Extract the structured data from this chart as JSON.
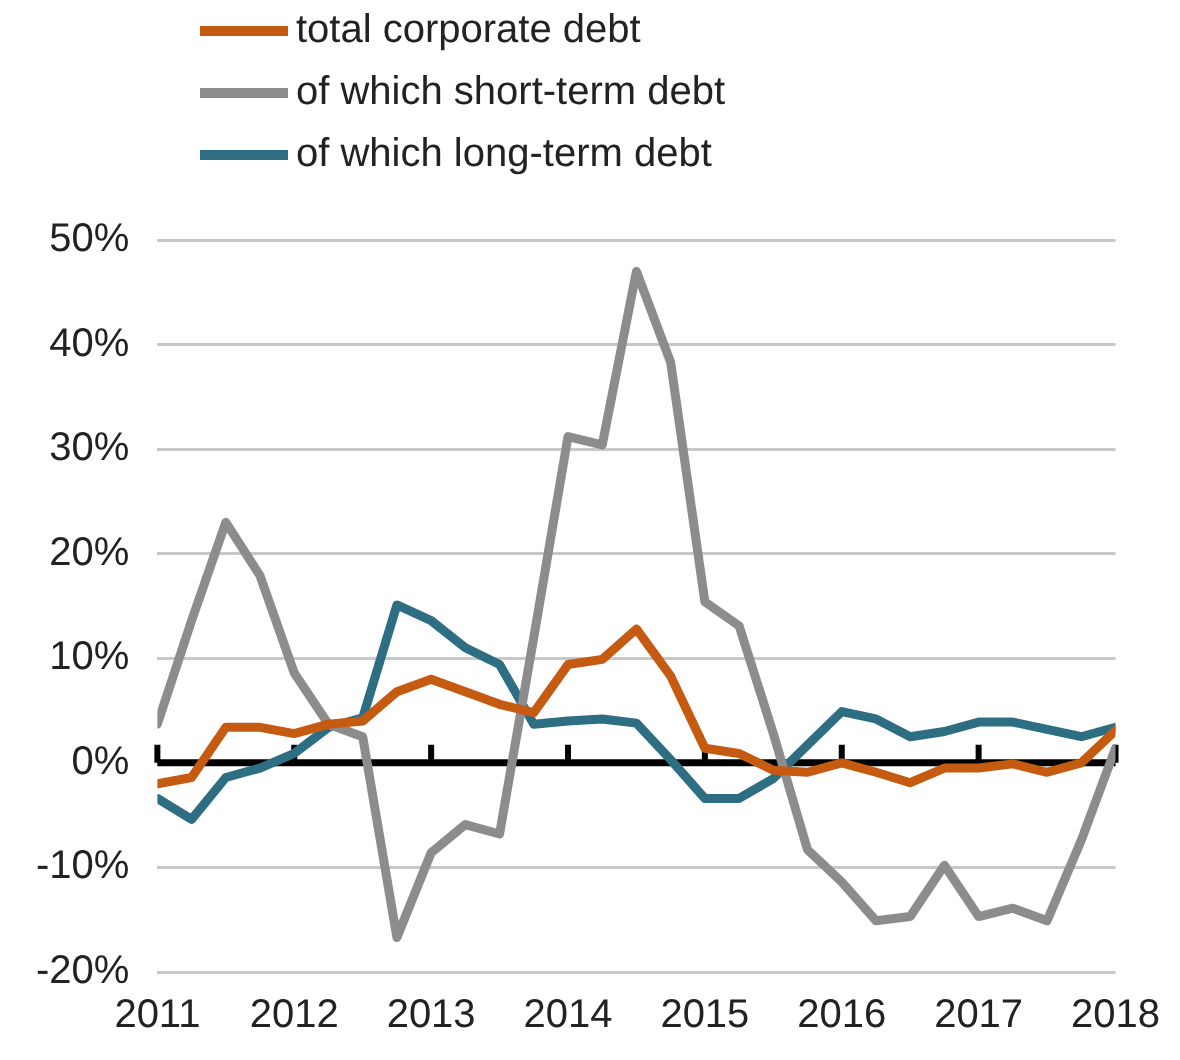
{
  "chart_data": {
    "type": "line",
    "legend": "top left",
    "grid": "y",
    "marker": "none",
    "line_style": "solid",
    "x": [
      2011,
      2011.25,
      2011.5,
      2011.75,
      2012,
      2012.25,
      2012.5,
      2012.75,
      2013,
      2013.25,
      2013.5,
      2013.75,
      2014,
      2014.25,
      2014.5,
      2014.75,
      2015,
      2015.25,
      2015.5,
      2015.75,
      2016,
      2016.25,
      2016.5,
      2016.75,
      2017,
      2017.25,
      2017.5,
      2017.75,
      2018
    ],
    "xlim": [
      2011,
      2018
    ],
    "xticks": [
      2011,
      2012,
      2013,
      2014,
      2015,
      2016,
      2017,
      2018
    ],
    "ylim": [
      -20,
      50
    ],
    "yticks": [
      {
        "value": -20,
        "label": "-20%"
      },
      {
        "value": -10,
        "label": "-10%"
      },
      {
        "value": 0,
        "label": "0%"
      },
      {
        "value": 10,
        "label": "10%"
      },
      {
        "value": 20,
        "label": "20%"
      },
      {
        "value": 30,
        "label": "30%"
      },
      {
        "value": 40,
        "label": "40%"
      },
      {
        "value": 50,
        "label": "50%"
      }
    ],
    "ref_lines": [
      {
        "axis": "y",
        "value": 0,
        "color": "#000000"
      }
    ],
    "series": [
      {
        "name": "total corporate debt",
        "color": "#c55a11",
        "values": [
          -2,
          -1.4,
          3.4,
          3.4,
          2.8,
          3.7,
          4,
          6.8,
          8,
          6.8,
          5.6,
          4.8,
          9.4,
          9.9,
          12.8,
          8.3,
          1.4,
          0.9,
          -0.7,
          -0.9,
          0,
          -0.9,
          -1.9,
          -0.5,
          -0.5,
          -0.1,
          -0.9,
          0,
          3.1
        ]
      },
      {
        "name": "of which short-term debt",
        "color": "#8c8c8c",
        "values": [
          3.7,
          13.6,
          23,
          17.9,
          8.6,
          3.7,
          2.5,
          -16.7,
          -8.6,
          -5.9,
          -6.8,
          12,
          31.2,
          30.4,
          47,
          38.3,
          15.4,
          13.1,
          2.8,
          -8.3,
          -11.4,
          -15.1,
          -14.7,
          -9.8,
          -14.7,
          -13.9,
          -15.1,
          -7.4,
          1.4
        ]
      },
      {
        "name": "of which long-term debt",
        "color": "#2e6e82",
        "values": [
          -3.4,
          -5.4,
          -1.4,
          -0.5,
          0.9,
          3.4,
          4.3,
          15.1,
          13.6,
          11,
          9.4,
          3.7,
          4,
          4.2,
          3.8,
          0.3,
          -3.4,
          -3.4,
          -1.5,
          1.7,
          4.9,
          4.2,
          2.5,
          3,
          3.9,
          3.9,
          3.2,
          2.5,
          3.4
        ]
      }
    ]
  }
}
